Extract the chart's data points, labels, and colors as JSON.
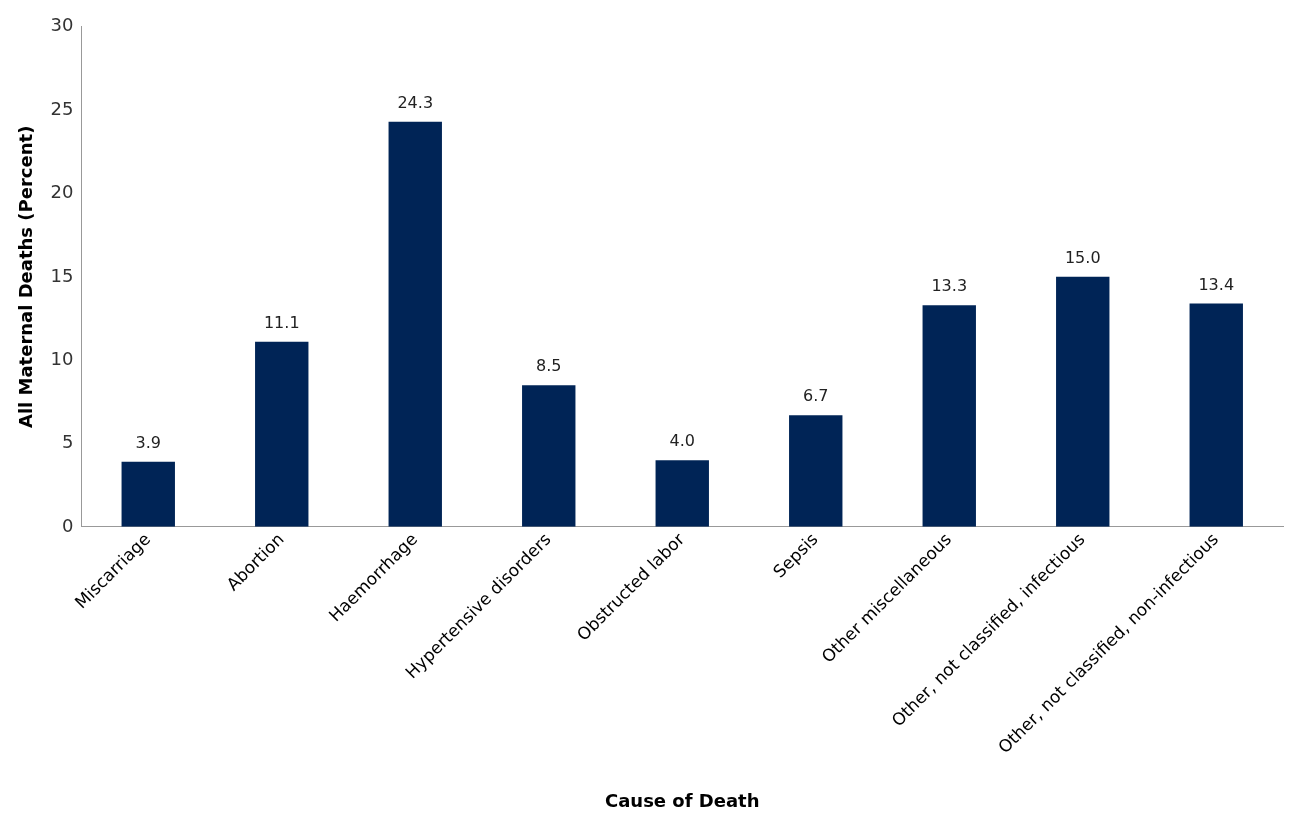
{
  "chart_data": {
    "type": "bar",
    "xlabel": "Cause of Death",
    "ylabel": "All Maternal Deaths (Percent)",
    "categories": [
      "Miscarriage",
      "Abortion",
      "Haemorrhage",
      "Hypertensive disorders",
      "Obstructed labor",
      "Sepsis",
      "Other miscellaneous",
      "Other, not classified, infectious",
      "Other, not classified, non-infectious"
    ],
    "values": [
      3.9,
      11.1,
      24.3,
      8.5,
      4.0,
      6.7,
      13.3,
      15.0,
      13.4
    ],
    "value_labels": [
      "3.9",
      "11.1",
      "24.3",
      "8.5",
      "4.0",
      "6.7",
      "13.3",
      "15.0",
      "13.4"
    ],
    "color": "#002456",
    "ylim": [
      0,
      30
    ],
    "yticks": [
      0,
      5,
      10,
      15,
      20,
      25,
      30
    ],
    "grid": false,
    "legend": false
  }
}
